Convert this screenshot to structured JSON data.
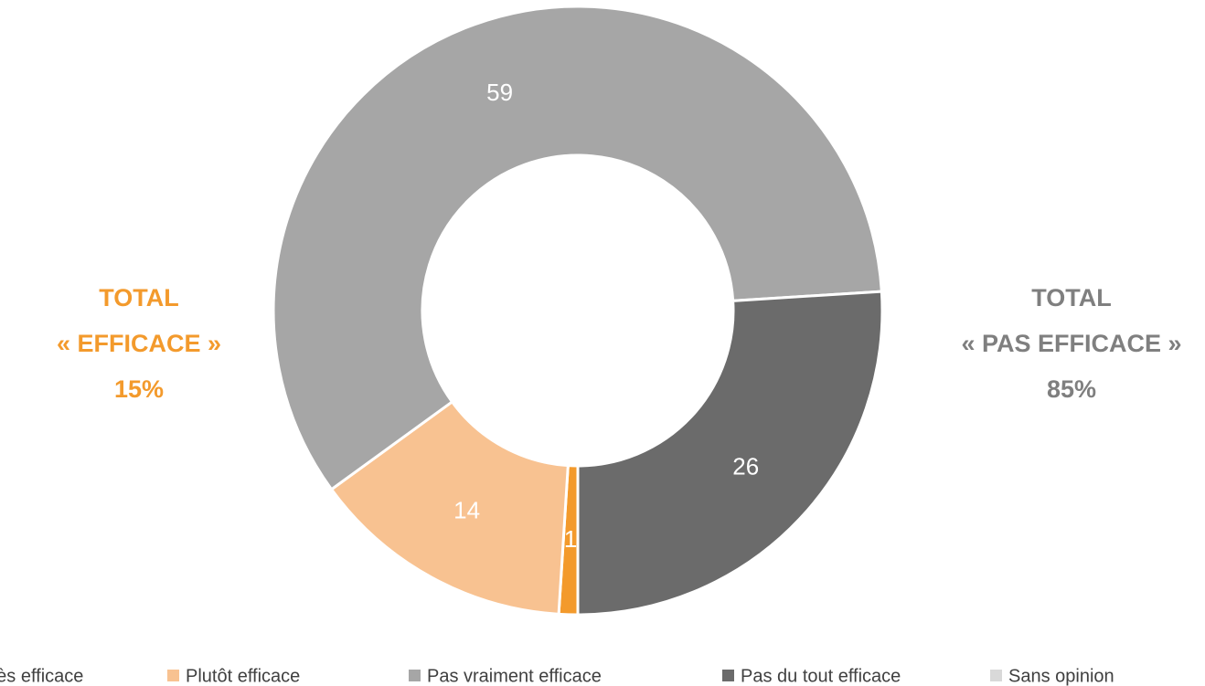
{
  "chart_data": {
    "type": "donut",
    "categories": [
      "Très efficace",
      "Plutôt efficace",
      "Pas vraiment efficace",
      "Pas du tout efficace",
      "Sans opinion"
    ],
    "values": [
      1,
      14,
      59,
      26,
      0
    ],
    "colors": [
      "#f39a2c",
      "#f8c291",
      "#a6a6a6",
      "#6b6b6b",
      "#d9d9d9"
    ],
    "legend": "bottom",
    "annotations": [
      {
        "lines": [
          "TOTAL",
          "« EFFICACE »",
          "15%"
        ],
        "color": "#f39a2c"
      },
      {
        "lines": [
          "TOTAL",
          "« PAS EFFICACE »",
          "85%"
        ],
        "color": "#7f7f7f"
      }
    ]
  }
}
